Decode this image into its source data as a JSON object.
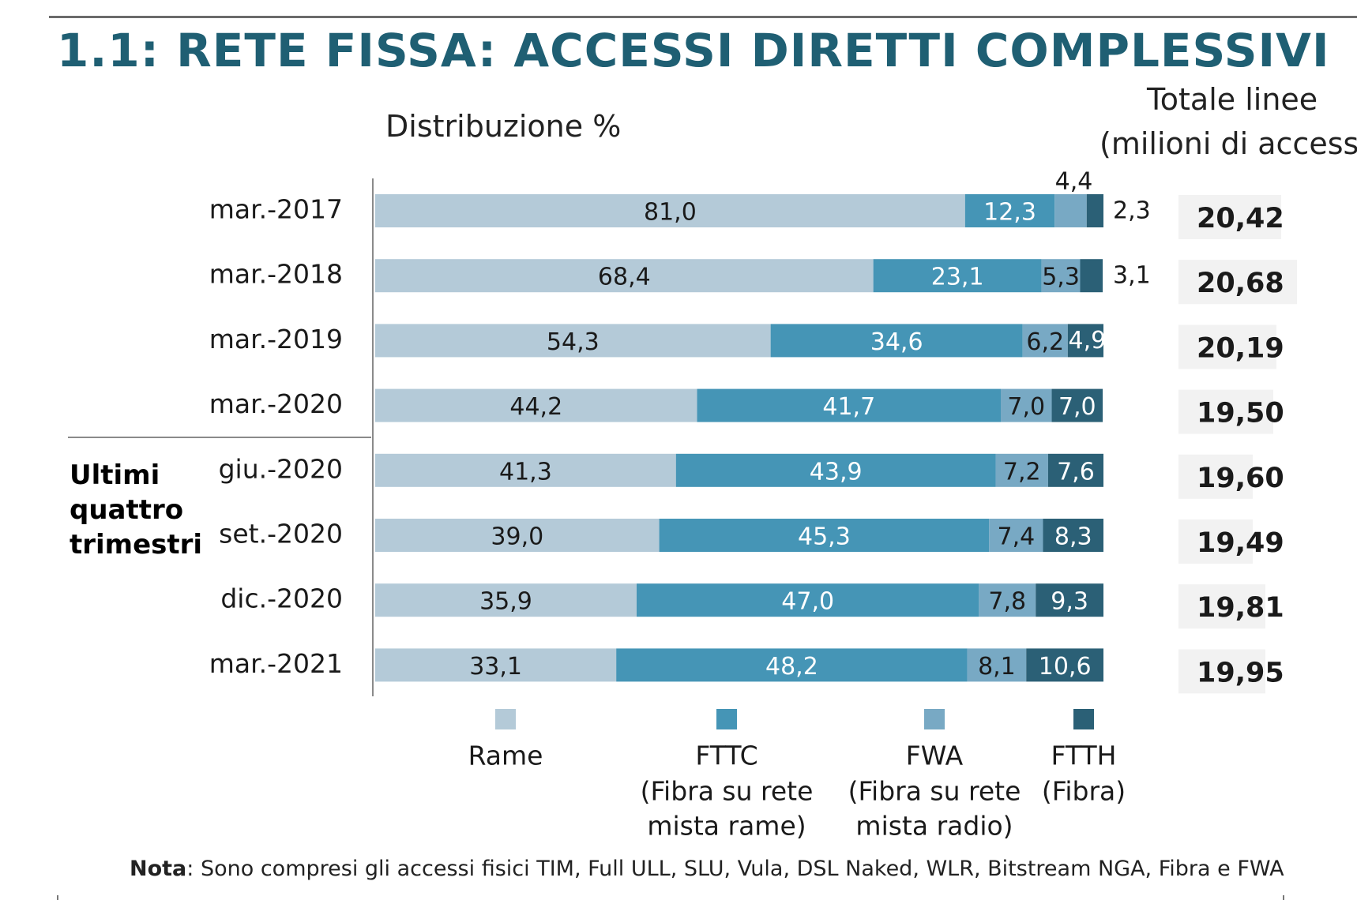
{
  "header": {
    "title": "1.1: RETE FISSA: ACCESSI DIRETTI COMPLESSIVI",
    "subtitle": "Distribuzione %",
    "totals_heading_line1": "Totale linee",
    "totals_heading_line2": "(milioni di accessi"
  },
  "group_label": [
    "Ultimi",
    "quattro",
    "trimestri"
  ],
  "note": {
    "bold": "Nota",
    "text": ": Sono compresi gli accessi fisici TIM, Full ULL, SLU, Vula, DSL Naked, WLR, Bitstream NGA, Fibra e FWA"
  },
  "colors": {
    "rame": "#b4cad8",
    "fttc": "#4595b6",
    "fwa": "#78a9c4",
    "ftth": "#2b6076",
    "total_box": "#f2f2f2",
    "title": "#1f5f73"
  },
  "chart_data": {
    "type": "bar",
    "orientation": "horizontal",
    "stacked": true,
    "categories": [
      "mar.-2017",
      "mar.-2018",
      "mar.-2019",
      "mar.-2020",
      "giu.-2020",
      "set.-2020",
      "dic.-2020",
      "mar.-2021"
    ],
    "series": [
      {
        "name": "Rame",
        "values": [
          81.0,
          68.4,
          54.3,
          44.2,
          41.3,
          39.0,
          35.9,
          33.1
        ],
        "labels": [
          "81,0",
          "68,4",
          "54,3",
          "44,2",
          "41,3",
          "39,0",
          "35,9",
          "33,1"
        ]
      },
      {
        "name": "FTTC",
        "values": [
          12.3,
          23.1,
          34.6,
          41.7,
          43.9,
          45.3,
          47.0,
          48.2
        ],
        "labels": [
          "12,3",
          "23,1",
          "34,6",
          "41,7",
          "43,9",
          "45,3",
          "47,0",
          "48,2"
        ]
      },
      {
        "name": "FWA",
        "values": [
          4.4,
          5.3,
          6.2,
          7.0,
          7.2,
          7.4,
          7.8,
          8.1
        ],
        "labels": [
          "4,4",
          "5,3",
          "6,2",
          "7,0",
          "7,2",
          "7,4",
          "7,8",
          "8,1"
        ]
      },
      {
        "name": "FTTH",
        "values": [
          2.3,
          3.1,
          4.9,
          7.0,
          7.6,
          8.3,
          9.3,
          10.6
        ],
        "labels": [
          "2,3",
          "3,1",
          "4,9",
          "7,0",
          "7,6",
          "8,3",
          "9,3",
          "10,6"
        ]
      }
    ],
    "legend": [
      {
        "series": "Rame",
        "lines": [
          "Rame"
        ]
      },
      {
        "series": "FTTC",
        "lines": [
          "FTTC",
          "(Fibra su rete",
          "mista rame)"
        ]
      },
      {
        "series": "FWA",
        "lines": [
          "FWA",
          "(Fibra su rete",
          "mista radio)"
        ]
      },
      {
        "series": "FTTH",
        "lines": [
          "FTTH",
          "(Fibra)"
        ]
      }
    ],
    "legend_position": "bottom",
    "totals": {
      "values": [
        20.42,
        20.68,
        20.19,
        19.5,
        19.6,
        19.49,
        19.81,
        19.95
      ],
      "labels": [
        "20,42",
        "20,68",
        "20,19",
        "19,50",
        "19,60",
        "19,49",
        "19,81",
        "19,95"
      ]
    },
    "xlim": [
      0,
      100
    ],
    "grid": false
  }
}
